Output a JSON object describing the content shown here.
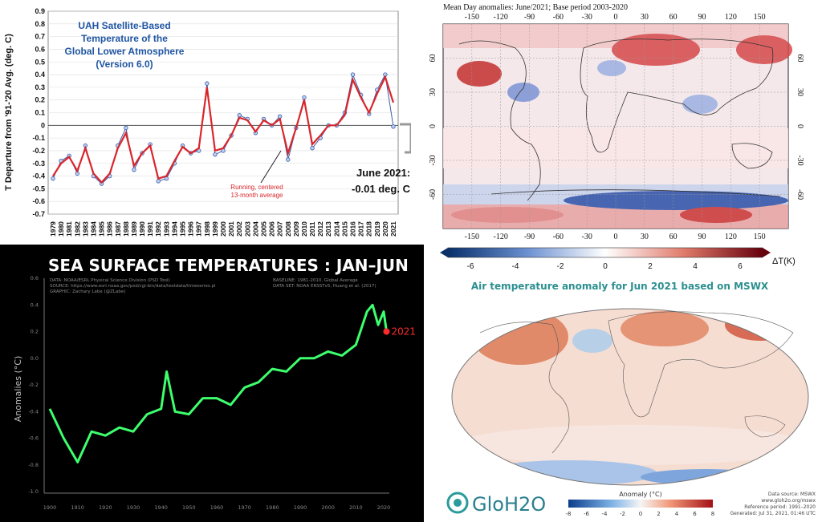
{
  "uah": {
    "title_lines": [
      "UAH Satellite-Based",
      "Temperature of the",
      "Global Lower Atmosphere",
      "(Version 6.0)"
    ],
    "ylabel": "T Departure from '91-'20 Avg. (deg. C)",
    "yticks": [
      "0.9",
      "0.8",
      "0.7",
      "0.6",
      "0.5",
      "0.4",
      "0.3",
      "0.2",
      "0.1",
      "0",
      "-0.1",
      "-0.2",
      "-0.3",
      "-0.4",
      "-0.5",
      "-0.6",
      "-0.7"
    ],
    "running_label_lines": [
      "Running, centered",
      "13-month average"
    ],
    "june_label_lines": [
      "June 2021:",
      "-0.01 deg. C"
    ],
    "colors": {
      "monthly": "#3b5ba9",
      "running": "#d9262c",
      "title": "#1f55a3"
    }
  },
  "mean_day": {
    "title": "Mean Day anomalies:  June/2021; Base period 2003-2020",
    "lon_ticks": [
      "-150",
      "-120",
      "-90",
      "-60",
      "-30",
      "0",
      "30",
      "60",
      "90",
      "120",
      "150"
    ],
    "lat_ticks_left": [
      "60",
      "30",
      "0",
      "-30",
      "-60"
    ],
    "lat_ticks_right": [
      "60",
      "30",
      "0",
      "-30",
      "-60"
    ],
    "colorbar_ticks": [
      "-6",
      "-4",
      "-2",
      "0",
      "2",
      "4",
      "6"
    ],
    "colorbar_unit": "ΔT(K)"
  },
  "sst": {
    "title": "SEA SURFACE TEMPERATURES : JAN–JUN",
    "meta_left_lines": [
      "DATA: NOAA/ESRL Physical Science Division (PSD Tool)",
      "SOURCE: https://www.esrl.noaa.gov/psd/cgi-bin/data/testdata/timeseries.pl",
      "GRAPHIC: Zachary Labe (@ZLabe)"
    ],
    "meta_right_lines": [
      "BASELINE: 1981-2010, Global Average",
      "DATA SET: NOAA ERSSTv5, Huang et al. (2017)"
    ],
    "ylabel": "Anomalies (°C)",
    "label_2021": "2021",
    "colors": {
      "line": "#3dff6e",
      "marker": "#ff2a2a"
    }
  },
  "mswx": {
    "title": "Air temperature anomaly for Jun 2021 based on MSWX",
    "logo_text": "GloH2O",
    "colorbar_label": "Anomaly (°C)",
    "colorbar_ticks": [
      "-8",
      "-6",
      "-4",
      "-2",
      "0",
      "2",
      "4",
      "6",
      "8"
    ],
    "info_lines": [
      "Data source: MSWX",
      "www.gloh2o.org/mswx",
      "Reference period: 1991–2020",
      "Generated: Jul 31, 2021, 01:46 UTC"
    ],
    "colors": {
      "title": "#2c8f8f"
    }
  },
  "chart_data": [
    {
      "type": "line",
      "title": "UAH Satellite-Based Temperature of the Global Lower Atmosphere (Version 6.0)",
      "ylabel": "T Departure from '91-'20 Avg. (deg. C)",
      "ylim": [
        -0.7,
        0.9
      ],
      "x": [
        "1979",
        "1980",
        "1981",
        "1982",
        "1983",
        "1984",
        "1985",
        "1986",
        "1987",
        "1988",
        "1989",
        "1990",
        "1991",
        "1992",
        "1993",
        "1994",
        "1995",
        "1996",
        "1997",
        "1998",
        "1999",
        "2000",
        "2001",
        "2002",
        "2003",
        "2004",
        "2005",
        "2006",
        "2007",
        "2008",
        "2009",
        "2010",
        "2011",
        "2012",
        "2013",
        "2014",
        "2015",
        "2016",
        "2017",
        "2018",
        "2019",
        "2020",
        "2021"
      ],
      "series": [
        {
          "values": [
            -0.42,
            -0.28,
            -0.24,
            -0.38,
            -0.16,
            -0.4,
            -0.46,
            -0.4,
            -0.16,
            -0.02,
            -0.35,
            -0.22,
            -0.15,
            -0.44,
            -0.42,
            -0.3,
            -0.16,
            -0.22,
            -0.2,
            0.33,
            -0.23,
            -0.2,
            -0.08,
            0.08,
            0.05,
            -0.06,
            0.05,
            0.0,
            0.07,
            -0.27,
            -0.02,
            0.22,
            -0.18,
            -0.1,
            0.0,
            0.0,
            0.1,
            0.4,
            0.24,
            0.09,
            0.28,
            0.4,
            -0.01
          ]
        },
        {
          "name": "Running, centered 13-month average",
          "values": [
            -0.4,
            -0.3,
            -0.25,
            -0.36,
            -0.18,
            -0.38,
            -0.45,
            -0.38,
            -0.18,
            -0.06,
            -0.32,
            -0.22,
            -0.16,
            -0.42,
            -0.4,
            -0.28,
            -0.17,
            -0.22,
            -0.18,
            0.3,
            -0.2,
            -0.18,
            -0.08,
            0.06,
            0.04,
            -0.05,
            0.04,
            0.0,
            0.05,
            -0.22,
            -0.02,
            0.2,
            -0.15,
            -0.08,
            0.0,
            0.0,
            0.08,
            0.36,
            0.22,
            0.1,
            0.25,
            0.38,
            0.18
          ]
        }
      ]
    },
    {
      "type": "line",
      "title": "SEA SURFACE TEMPERATURES : JAN–JUN",
      "ylabel": "Anomalies (°C)",
      "ylim": [
        -1.0,
        0.6
      ],
      "xlim": [
        1900,
        2020
      ],
      "x": [
        1900,
        1905,
        1910,
        1915,
        1920,
        1925,
        1930,
        1935,
        1940,
        1942,
        1945,
        1950,
        1955,
        1960,
        1965,
        1970,
        1975,
        1980,
        1985,
        1990,
        1995,
        2000,
        2005,
        2010,
        2014,
        2016,
        2018,
        2020,
        2021
      ],
      "series": [
        {
          "name": "2021",
          "values": [
            -0.38,
            -0.6,
            -0.78,
            -0.55,
            -0.58,
            -0.52,
            -0.55,
            -0.42,
            -0.38,
            -0.1,
            -0.4,
            -0.42,
            -0.3,
            -0.3,
            -0.35,
            -0.22,
            -0.18,
            -0.08,
            -0.1,
            0.0,
            0.0,
            0.05,
            0.02,
            0.1,
            0.35,
            0.4,
            0.25,
            0.35,
            0.2
          ]
        }
      ]
    }
  ]
}
